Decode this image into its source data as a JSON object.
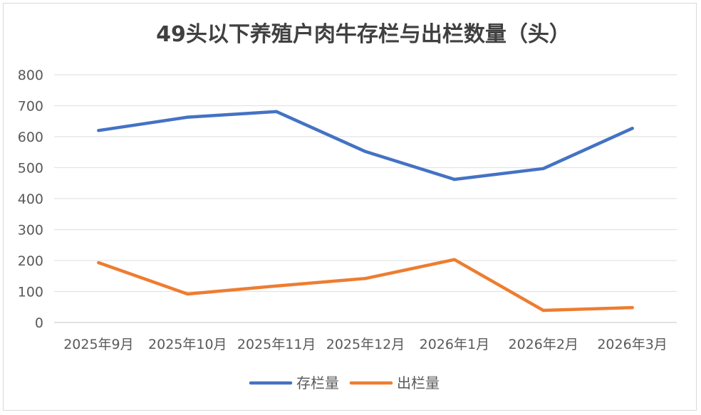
{
  "chart_data": {
    "type": "line",
    "title": "49头以下养殖户肉牛存栏与出栏数量（头）",
    "xlabel": "",
    "ylabel": "",
    "categories": [
      "2025年9月",
      "2025年10月",
      "2025年11月",
      "2025年12月",
      "2026年1月",
      "2026年2月",
      "2026年3月"
    ],
    "series": [
      {
        "name": "存栏量",
        "color": "#4472C4",
        "values": [
          620,
          663,
          681,
          552,
          462,
          497,
          627
        ]
      },
      {
        "name": "出栏量",
        "color": "#ED7D31",
        "values": [
          193,
          92,
          118,
          142,
          203,
          39,
          48
        ]
      }
    ],
    "ylim": [
      0,
      800
    ],
    "yticks": [
      0,
      100,
      200,
      300,
      400,
      500,
      600,
      700,
      800
    ],
    "grid": true,
    "legend": "bottom"
  }
}
